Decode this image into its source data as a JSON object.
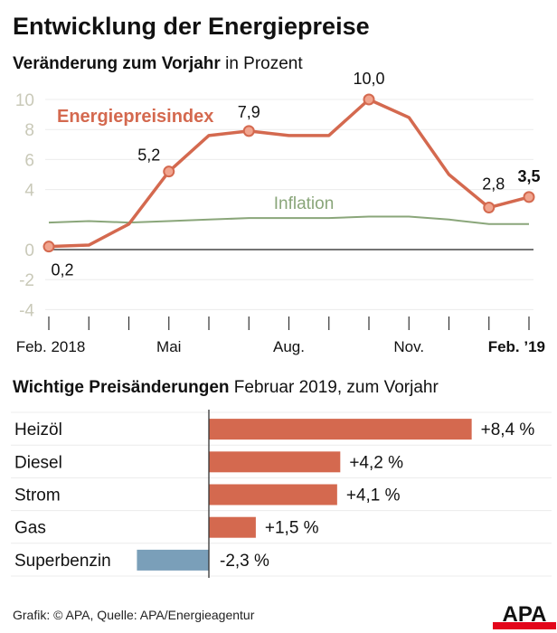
{
  "title": "Entwicklung der Energiepreise",
  "line_subtitle_bold": "Veränderung zum Vorjahr",
  "line_subtitle_rest": " in Prozent",
  "bar_subtitle_bold": "Wichtige Preisänderungen",
  "bar_subtitle_rest": " Februar 2019, zum Vorjahr",
  "source": "Grafik: © APA, Quelle: APA/Energieagentur",
  "logo": "APA",
  "chart_data": [
    {
      "type": "line",
      "ylim": [
        -4,
        10
      ],
      "yticks": [
        "10",
        "8",
        "6",
        "4",
        "0",
        "-2",
        "-4"
      ],
      "ytick_values": [
        10,
        8,
        6,
        4,
        0,
        -2,
        -4
      ],
      "xtick_labels": [
        {
          "index": 0,
          "label": "Feb. 2018"
        },
        {
          "index": 3,
          "label": "Mai"
        },
        {
          "index": 6,
          "label": "Aug."
        },
        {
          "index": 9,
          "label": "Nov."
        },
        {
          "index": 12,
          "label": "Feb. ’19",
          "bold": true
        }
      ],
      "x_count": 13,
      "series": [
        {
          "name": "Energiepreisindex",
          "color": "#d4694f",
          "values": [
            0.2,
            0.3,
            1.7,
            5.2,
            7.6,
            7.9,
            7.6,
            7.6,
            10.0,
            8.8,
            5.0,
            2.8,
            3.5
          ],
          "labels": [
            {
              "index": 0,
              "text": "0,2"
            },
            {
              "index": 3,
              "text": "5,2"
            },
            {
              "index": 5,
              "text": "7,9"
            },
            {
              "index": 8,
              "text": "10,0"
            },
            {
              "index": 11,
              "text": "2,8"
            },
            {
              "index": 12,
              "text": "3,5",
              "bold": true
            }
          ]
        },
        {
          "name": "Inflation",
          "color": "#8aa67a",
          "values": [
            1.8,
            1.9,
            1.8,
            1.9,
            2.0,
            2.1,
            2.1,
            2.1,
            2.2,
            2.2,
            2.0,
            1.7,
            1.7
          ]
        }
      ]
    },
    {
      "type": "bar",
      "orientation": "horizontal",
      "categories": [
        "Heizöl",
        "Diesel",
        "Strom",
        "Gas",
        "Superbenzin"
      ],
      "values": [
        8.4,
        4.2,
        4.1,
        1.5,
        -2.3
      ],
      "labels": [
        "+8,4 %",
        "+4,2 %",
        "+4,1 %",
        "+1,5 %",
        "-2,3 %"
      ],
      "colors": {
        "positive": "#d4694f",
        "negative": "#7a9fb9"
      }
    }
  ]
}
